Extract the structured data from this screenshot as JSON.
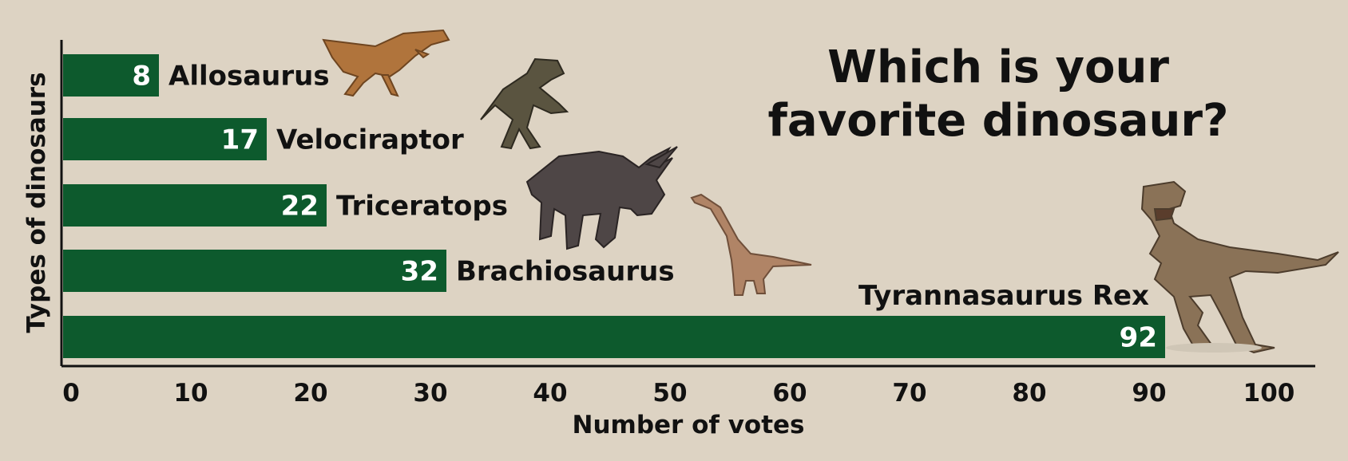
{
  "chart_data": {
    "type": "bar",
    "orientation": "horizontal",
    "title_lines": [
      "Which is your",
      "favorite dinosaur?"
    ],
    "xlabel": "Number of votes",
    "ylabel": "Types of dinosaurs",
    "categories": [
      "Allosaurus",
      "Velociraptor",
      "Triceratops",
      "Brachiosaurus",
      "Tyrannasaurus Rex"
    ],
    "values": [
      8,
      17,
      22,
      32,
      92
    ],
    "value_labels": [
      "8",
      "17",
      "22",
      "32",
      "92"
    ],
    "xlim": [
      0,
      100
    ],
    "x_ticks": [
      "0",
      "10",
      "20",
      "30",
      "40",
      "50",
      "60",
      "70",
      "80",
      "90",
      "100"
    ],
    "grid": false,
    "legend": "none",
    "bar_color": "#0d5a2d",
    "background_color": "#ddd3c3",
    "illustrations": [
      "allosaurus",
      "velociraptor",
      "triceratops",
      "brachiosaurus",
      "tyrannosaurus"
    ]
  }
}
